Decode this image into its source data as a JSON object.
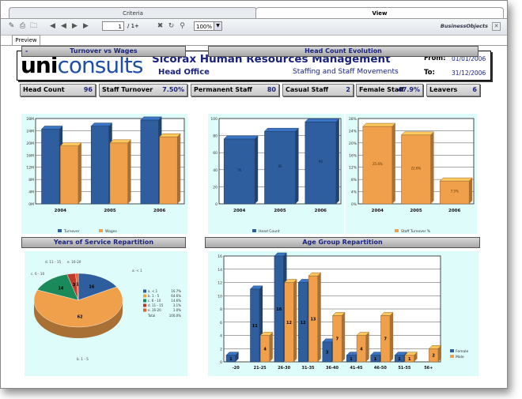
{
  "tabs": {
    "criteria": "Criteria",
    "view": "View"
  },
  "toolbar": {
    "page": "1",
    "page_of": "/ 1+",
    "zoom": "100%",
    "brand": "BusinessObjects",
    "preview_tab": "Preview"
  },
  "header": {
    "logo_uni": "uni",
    "logo_consults": "consults",
    "title": "Sicorax Human Resources Management",
    "office": "Head Office",
    "subtitle": "Staffing and Staff Movements",
    "from_label": "From:",
    "from_date": "01/01/2006",
    "to_label": "To:",
    "to_date": "31/12/2006"
  },
  "kpis": [
    {
      "label": "Head Count",
      "value": "96"
    },
    {
      "label": "Staff Turnover",
      "value": "7.50%"
    },
    {
      "label": "Permanent Staff",
      "value": "80"
    },
    {
      "label": "Casual Staff",
      "value": "2"
    },
    {
      "label": "Female Staff",
      "value": "47.9%"
    },
    {
      "label": "Leavers",
      "value": "6"
    }
  ],
  "sections": {
    "turnover_wages": "Turnover vs Wages",
    "turnover_wages_marker": "-",
    "headcount_evo": "Head Count Evolution",
    "years_service": "Years of Service Repartition",
    "age_group": "Age Group Repartition"
  },
  "colors": {
    "blue": "#2e5e9e",
    "orange": "#f0a04a",
    "green": "#1a8a5a",
    "red": "#c0392b",
    "navy": "#1a237e"
  },
  "chart_data": [
    {
      "type": "bar",
      "categories": [
        "2004",
        "2005",
        "2006"
      ],
      "series": [
        {
          "name": "Turnover",
          "values": [
            24.5,
            25.5,
            27.5
          ]
        },
        {
          "name": "Wages",
          "values": [
            19,
            20,
            22
          ]
        }
      ],
      "yticks": [
        "0M",
        "4M",
        "8M",
        "12M",
        "16M",
        "20M",
        "24M",
        "28M"
      ],
      "ylim": [
        0,
        28
      ]
    },
    {
      "type": "bar",
      "categories": [
        "2004",
        "2005",
        "2006"
      ],
      "series": [
        {
          "name": "Head Count",
          "values": [
            76,
            85,
            96
          ],
          "labels": [
            "76",
            "85",
            "96"
          ]
        }
      ],
      "yticks": [
        "0",
        "20",
        "40",
        "60",
        "80",
        "100"
      ],
      "ylim": [
        0,
        100
      ]
    },
    {
      "type": "bar",
      "categories": [
        "2004",
        "2005",
        "2006"
      ],
      "series": [
        {
          "name": "Staff Turnover %",
          "values": [
            25.4,
            22.6,
            7.5
          ],
          "labels": [
            "25.4%",
            "22.6%",
            "7.5%"
          ]
        }
      ],
      "yticks": [
        "0%",
        "4%",
        "8%",
        "12%",
        "16%",
        "20%",
        "24%",
        "28%"
      ],
      "ylim": [
        0,
        28
      ]
    },
    {
      "type": "pie",
      "slices": [
        {
          "label": "a. < 1",
          "value": 16.7,
          "count": "16",
          "pct": "16.7%"
        },
        {
          "label": "b. 1 - 5",
          "value": 64.6,
          "count": "62",
          "pct": "64.6%"
        },
        {
          "label": "c. 6 - 10",
          "value": 14.6,
          "count": "14",
          "pct": "14.6%"
        },
        {
          "label": "d. 11 - 15",
          "value": 3.1,
          "count": "3",
          "pct": "3.1%"
        },
        {
          "label": "e. 16-20",
          "value": 1.0,
          "count": "1",
          "pct": "1.0%"
        }
      ],
      "total_label": "Total",
      "total_pct": "100.0%",
      "outer_labels": [
        "a. < 1",
        "b. 1 - 5",
        "c. 6 - 10",
        "d. 11 - 15",
        "e. 16-20"
      ]
    },
    {
      "type": "bar",
      "categories": [
        "-20",
        "21-25",
        "26-30",
        "31-35",
        "36-40",
        "41-45",
        "46-50",
        "51-55",
        "56+"
      ],
      "series": [
        {
          "name": "Female",
          "values": [
            1,
            11,
            16,
            12,
            3,
            1,
            1,
            1,
            0
          ]
        },
        {
          "name": "Male",
          "values": [
            0,
            4,
            12,
            13,
            7,
            4,
            7,
            1,
            2
          ]
        }
      ],
      "yticks": [
        "0",
        "2",
        "4",
        "6",
        "8",
        "10",
        "12",
        "14",
        "16"
      ],
      "ylim": [
        0,
        16
      ]
    }
  ]
}
